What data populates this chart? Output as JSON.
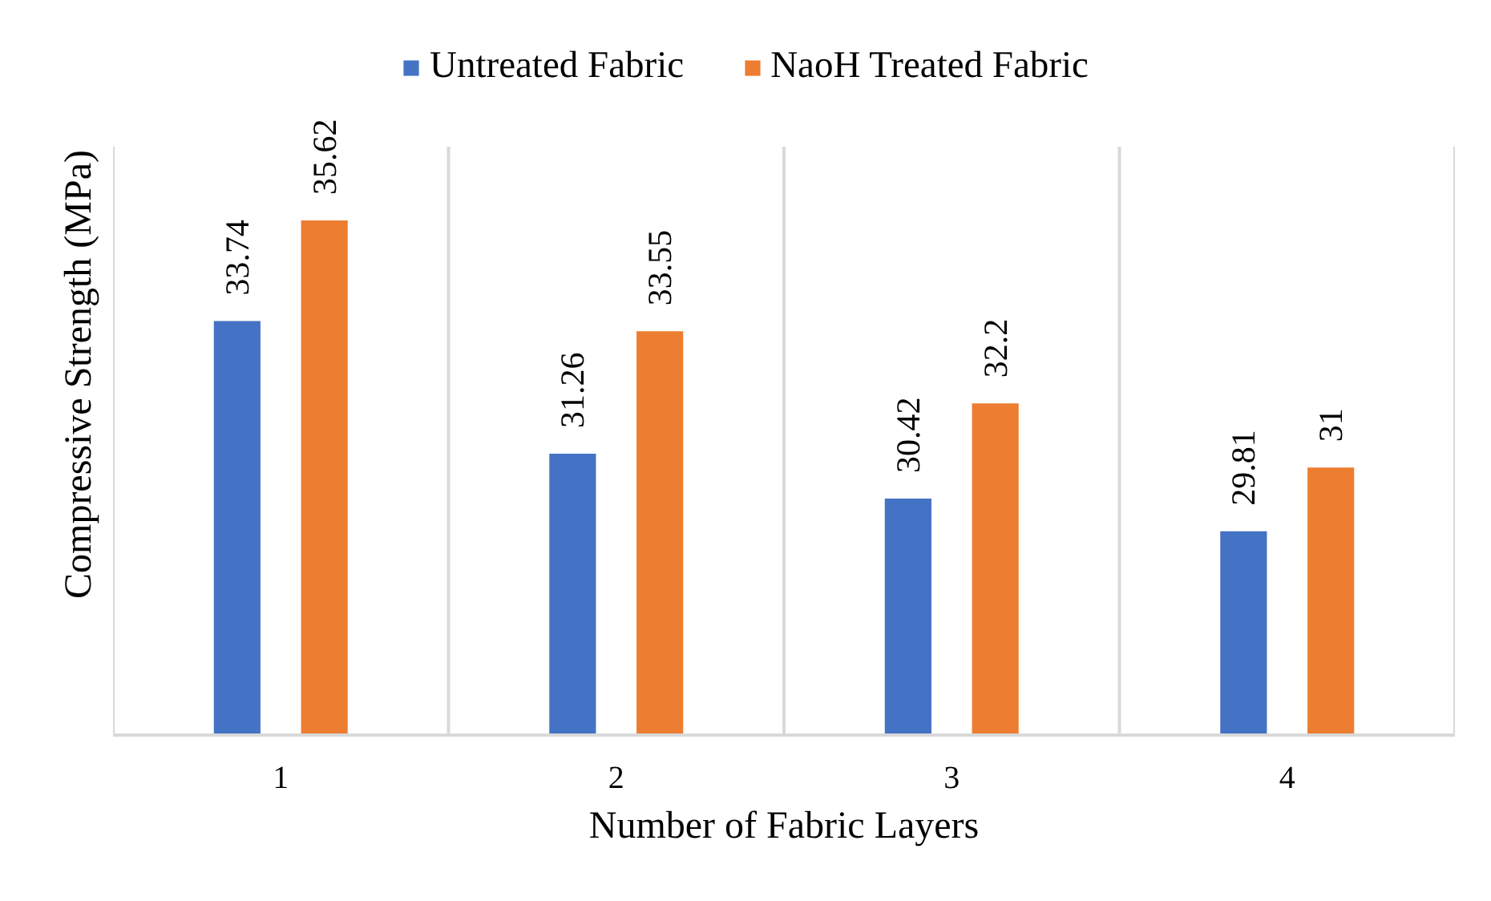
{
  "chart_data": {
    "type": "bar",
    "xlabel": "Number of Fabric Layers",
    "ylabel": "Compressive Strength (MPa)",
    "categories": [
      "1",
      "2",
      "3",
      "4"
    ],
    "series": [
      {
        "name": "Untreated Fabric",
        "color": "#4472c4",
        "values": [
          33.74,
          31.26,
          30.42,
          29.81
        ]
      },
      {
        "name": "NaoH Treated Fabric",
        "color": "#ed7d31",
        "values": [
          35.62,
          33.55,
          32.2,
          31
        ]
      }
    ],
    "ylim": [
      26,
      37
    ],
    "data_labels": true,
    "legend": "top",
    "grid": "x",
    "tick_labels": "x"
  }
}
